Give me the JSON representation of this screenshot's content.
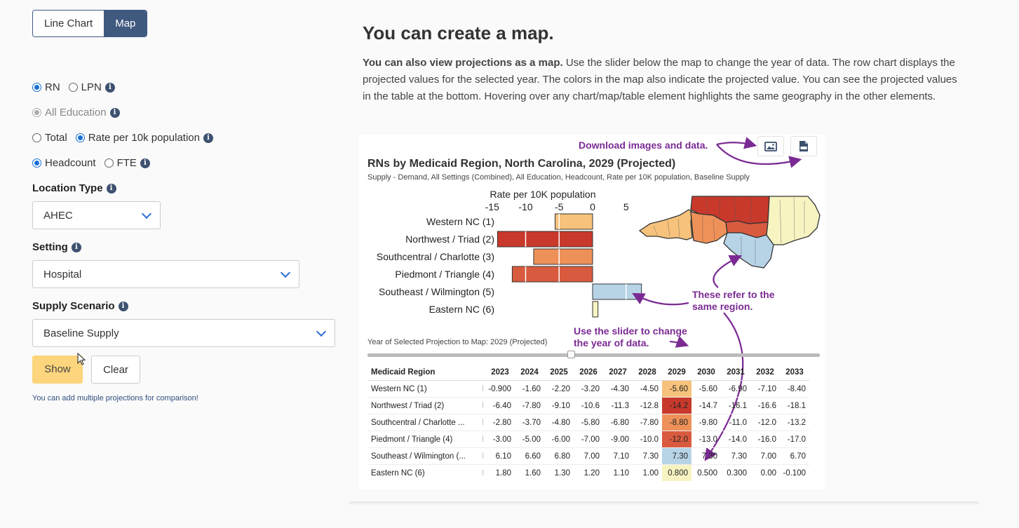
{
  "toggle": {
    "line_chart": "Line Chart",
    "map": "Map"
  },
  "filters": {
    "rn": "RN",
    "lpn": "LPN",
    "all_education": "All Education",
    "total": "Total",
    "rate": "Rate per 10k population",
    "headcount": "Headcount",
    "fte": "FTE",
    "location_type_label": "Location Type",
    "location_type_value": "AHEC",
    "setting_label": "Setting",
    "setting_value": "Hospital",
    "supply_label": "Supply Scenario",
    "supply_value": "Baseline Supply",
    "show": "Show",
    "clear": "Clear",
    "hint": "You can add multiple projections for comparison!",
    "info_glyph": "i"
  },
  "main": {
    "title": "You can create a map.",
    "intro_bold": "You can also view projections as a map.",
    "intro_rest": " Use the slider below the map to change the year of data. The row chart displays the projected values for the selected year. The colors in the map also indicate the projected value. You can see the projected values in the table at the bottom. Hovering over any chart/map/table element highlights the same geography in the other elements."
  },
  "figure": {
    "title": "RNs by Medicaid Region, North Carolina, 2029 (Projected)",
    "subtitle": "Supply - Demand, All Settings (Combined), All Education, Headcount, Rate per 10K population, Baseline Supply",
    "notes": {
      "download": "Download images and data.",
      "same_region": [
        "These refer to the",
        "same region."
      ],
      "slider": [
        "Use the slider to change",
        "the year of data."
      ]
    },
    "slider_label": "Year of Selected Projection to Map: 2029 (Projected)",
    "selected_year": 2029,
    "year_range": [
      2023,
      2033
    ],
    "icons": [
      "image-icon",
      "csv-icon"
    ]
  },
  "chart_data": {
    "type": "bar",
    "title": "RNs by Medicaid Region, North Carolina, 2029 (Projected)",
    "xlabel": "Rate per 10K population",
    "xlim": [
      -16,
      5
    ],
    "xticks": [
      -15,
      -10,
      -5,
      0,
      5
    ],
    "categories": [
      "Western NC (1)",
      "Northwest / Triad (2)",
      "Southcentral / Charlotte (3)",
      "Piedmont / Triangle (4)",
      "Southeast / Wilmington (5)",
      "Eastern NC (6)"
    ],
    "values": [
      -5.6,
      -14.2,
      -8.8,
      -12.0,
      7.3,
      0.8
    ],
    "colors": [
      "#f7c27b",
      "#c8392c",
      "#ee9159",
      "#d95b3f",
      "#b7d4e7",
      "#f7f4c2"
    ]
  },
  "table": {
    "header": "Medicaid Region",
    "years": [
      "2023",
      "2024",
      "2025",
      "2026",
      "2027",
      "2028",
      "2029",
      "2030",
      "2031",
      "2032",
      "2033"
    ],
    "rows": [
      {
        "name": "Western NC (1)",
        "values": [
          "-0.900",
          "-1.60",
          "-2.20",
          "-3.20",
          "-4.30",
          "-4.50",
          "-5.60",
          "-5.60",
          "-6.90",
          "-7.10",
          "-8.40"
        ]
      },
      {
        "name": "Northwest / Triad (2)",
        "values": [
          "-6.40",
          "-7.80",
          "-9.10",
          "-10.6",
          "-11.3",
          "-12.8",
          "-14.2",
          "-14.7",
          "-16.1",
          "-16.6",
          "-18.1"
        ]
      },
      {
        "name": "Southcentral / Charlotte ...",
        "values": [
          "-2.80",
          "-3.70",
          "-4.80",
          "-5.80",
          "-6.80",
          "-7.80",
          "-8.80",
          "-9.80",
          "-11.0",
          "-12.0",
          "-13.2"
        ]
      },
      {
        "name": "Piedmont / Triangle (4)",
        "values": [
          "-3.00",
          "-5.00",
          "-6.00",
          "-7.00",
          "-9.00",
          "-10.0",
          "-12.0",
          "-13.0",
          "-14.0",
          "-16.0",
          "-17.0"
        ]
      },
      {
        "name": "Southeast / Wilmington (...",
        "values": [
          "6.10",
          "6.60",
          "6.80",
          "7.00",
          "7.10",
          "7.30",
          "7.30",
          "7.30",
          "7.30",
          "7.00",
          "6.70"
        ]
      },
      {
        "name": "Eastern NC (6)",
        "values": [
          "1.80",
          "1.60",
          "1.30",
          "1.20",
          "1.10",
          "1.00",
          "0.800",
          "0.500",
          "0.300",
          "0.00",
          "-0.100"
        ]
      }
    ]
  }
}
